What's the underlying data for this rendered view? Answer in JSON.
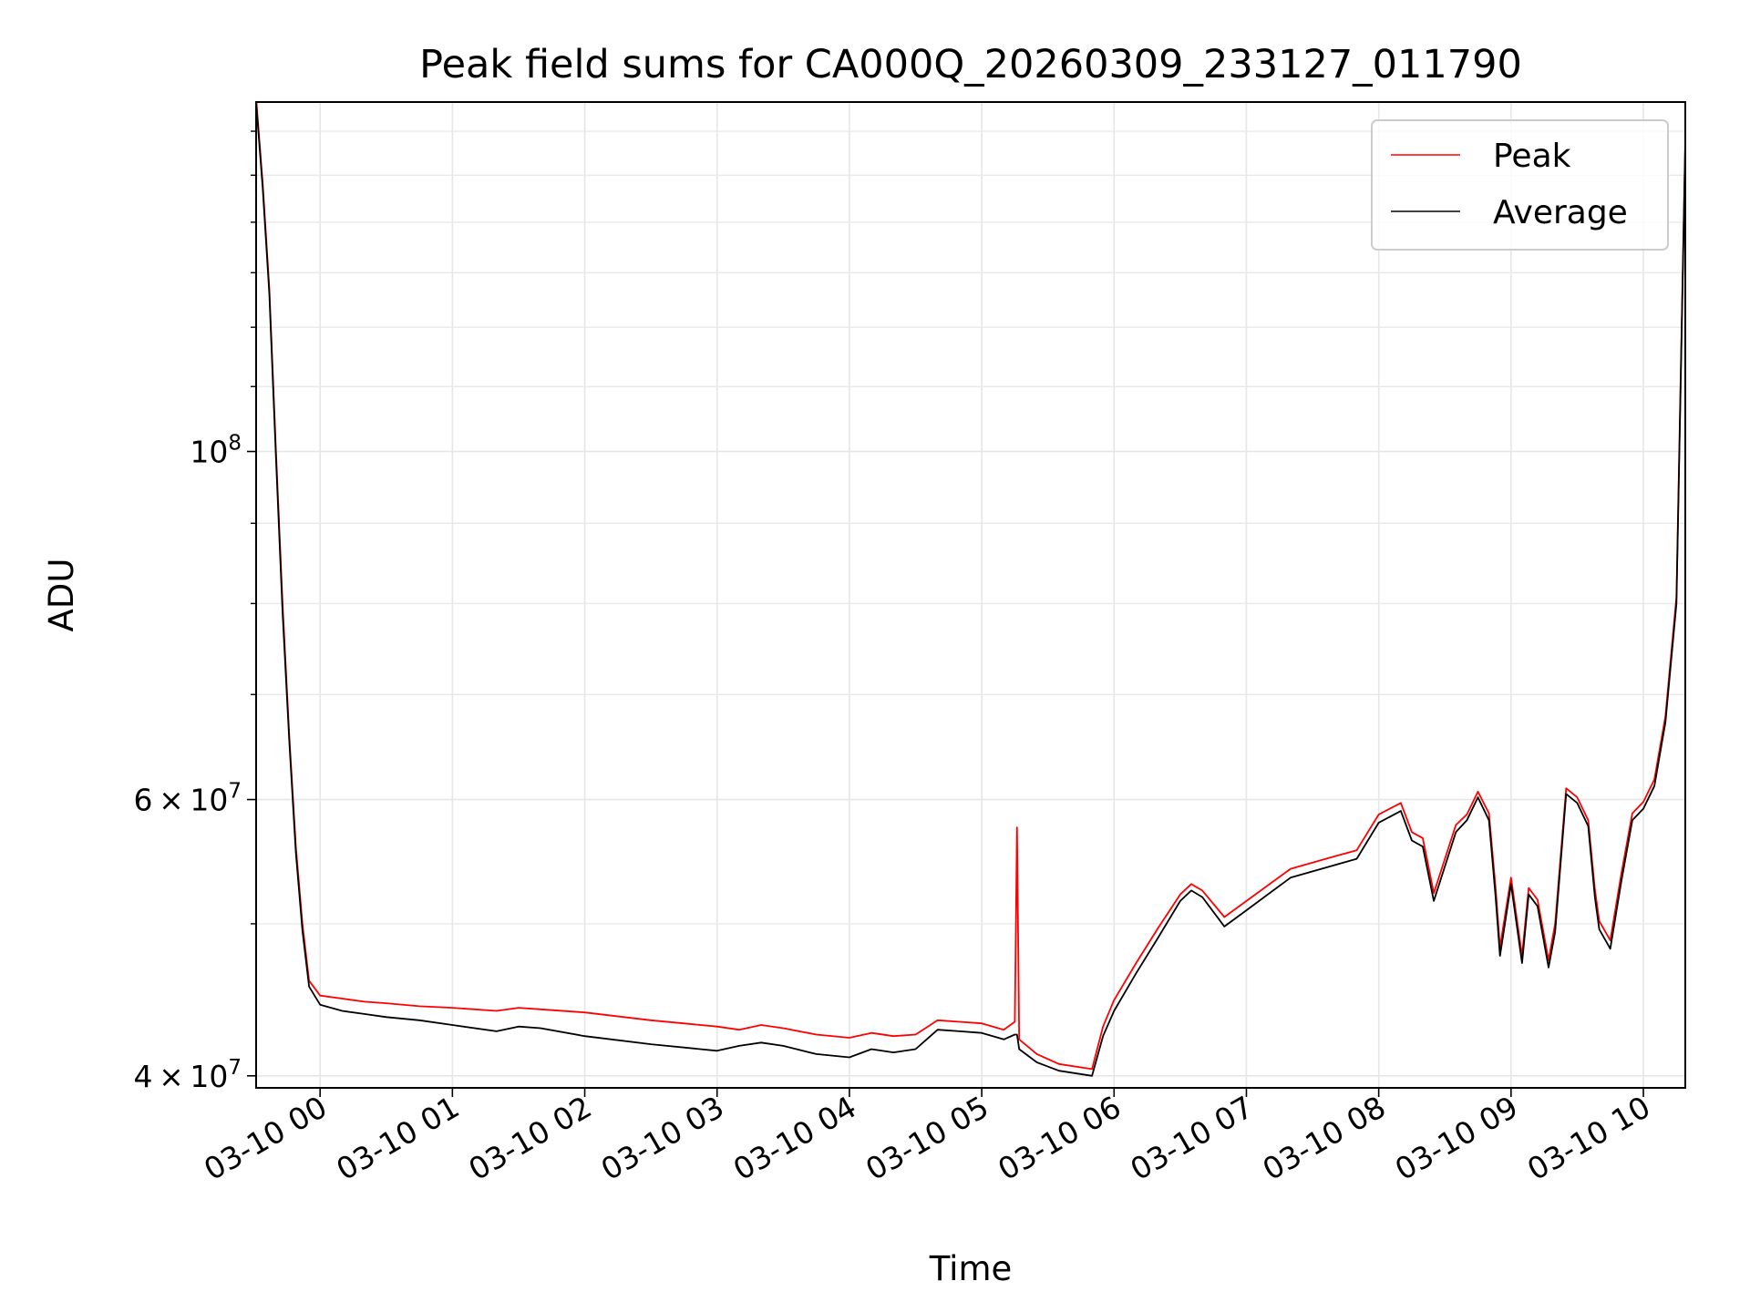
{
  "chart_data": {
    "type": "line",
    "title": "Peak field sums for CA000Q_20260309_233127_011790",
    "xlabel": "Time",
    "ylabel": "ADU",
    "yscale": "log",
    "ylim": [
      39300000,
      167000000
    ],
    "xlim": [
      "2026-03-09 23:31",
      "2026-03-10 10:19"
    ],
    "grid": true,
    "legend_position": "top-right",
    "x_ticks": [
      "03-10 00",
      "03-10 01",
      "03-10 02",
      "03-10 03",
      "03-10 04",
      "03-10 05",
      "03-10 06",
      "03-10 07",
      "03-10 08",
      "03-10 09",
      "03-10 10"
    ],
    "y_major_ticks": [
      {
        "value": 40000000,
        "mantissa": "4",
        "exp": "7"
      },
      {
        "value": 60000000,
        "mantissa": "6",
        "exp": "7"
      },
      {
        "value": 100000000,
        "mantissa": "",
        "exp": "8"
      }
    ],
    "series": [
      {
        "name": "Peak",
        "color": "#ff0000",
        "x": [
          "2026-03-09 23:31",
          "2026-03-09 23:34",
          "2026-03-09 23:37",
          "2026-03-09 23:40",
          "2026-03-09 23:43",
          "2026-03-09 23:46",
          "2026-03-09 23:49",
          "2026-03-09 23:52",
          "2026-03-09 23:55",
          "2026-03-10 00:00",
          "2026-03-10 00:10",
          "2026-03-10 00:20",
          "2026-03-10 00:30",
          "2026-03-10 00:45",
          "2026-03-10 01:00",
          "2026-03-10 01:20",
          "2026-03-10 01:30",
          "2026-03-10 01:40",
          "2026-03-10 02:00",
          "2026-03-10 02:30",
          "2026-03-10 03:00",
          "2026-03-10 03:10",
          "2026-03-10 03:20",
          "2026-03-10 03:30",
          "2026-03-10 03:45",
          "2026-03-10 04:00",
          "2026-03-10 04:10",
          "2026-03-10 04:20",
          "2026-03-10 04:30",
          "2026-03-10 04:40",
          "2026-03-10 04:50",
          "2026-03-10 05:00",
          "2026-03-10 05:10",
          "2026-03-10 05:15",
          "2026-03-10 05:16",
          "2026-03-10 05:17",
          "2026-03-10 05:25",
          "2026-03-10 05:35",
          "2026-03-10 05:50",
          "2026-03-10 05:55",
          "2026-03-10 06:00",
          "2026-03-10 06:10",
          "2026-03-10 06:20",
          "2026-03-10 06:30",
          "2026-03-10 06:35",
          "2026-03-10 06:40",
          "2026-03-10 06:50",
          "2026-03-10 07:00",
          "2026-03-10 07:20",
          "2026-03-10 07:30",
          "2026-03-10 07:40",
          "2026-03-10 07:50",
          "2026-03-10 08:00",
          "2026-03-10 08:10",
          "2026-03-10 08:15",
          "2026-03-10 08:20",
          "2026-03-10 08:25",
          "2026-03-10 08:35",
          "2026-03-10 08:40",
          "2026-03-10 08:45",
          "2026-03-10 08:50",
          "2026-03-10 08:53",
          "2026-03-10 08:55",
          "2026-03-10 09:00",
          "2026-03-10 09:05",
          "2026-03-10 09:08",
          "2026-03-10 09:12",
          "2026-03-10 09:17",
          "2026-03-10 09:20",
          "2026-03-10 09:25",
          "2026-03-10 09:30",
          "2026-03-10 09:35",
          "2026-03-10 09:38",
          "2026-03-10 09:40",
          "2026-03-10 09:45",
          "2026-03-10 09:50",
          "2026-03-10 09:55",
          "2026-03-10 10:00",
          "2026-03-10 10:05",
          "2026-03-10 10:10",
          "2026-03-10 10:15",
          "2026-03-10 10:19"
        ],
        "y": [
          168000000,
          148000000,
          127000000,
          100000000,
          80000000,
          66000000,
          56000000,
          50000000,
          46000000,
          45000000,
          44800000,
          44600000,
          44500000,
          44300000,
          44200000,
          44000000,
          44200000,
          44100000,
          43900000,
          43400000,
          43000000,
          42800000,
          43100000,
          42900000,
          42500000,
          42300000,
          42600000,
          42400000,
          42500000,
          43400000,
          43300000,
          43200000,
          42800000,
          43300000,
          57600000,
          42200000,
          41300000,
          40700000,
          40400000,
          43000000,
          44700000,
          47200000,
          49700000,
          52200000,
          53000000,
          52500000,
          50500000,
          51700000,
          54200000,
          54700000,
          55200000,
          55700000,
          58700000,
          59700000,
          57200000,
          56700000,
          52300000,
          57800000,
          58700000,
          60700000,
          58800000,
          52700000,
          48300000,
          53500000,
          47700000,
          52700000,
          51800000,
          47400000,
          50000000,
          61000000,
          60200000,
          58200000,
          52600000,
          50200000,
          48800000,
          53800000,
          58800000,
          59800000,
          61800000,
          67800000,
          80800000,
          158000000
        ]
      },
      {
        "name": "Average",
        "color": "#000000",
        "x": [
          "2026-03-09 23:31",
          "2026-03-09 23:34",
          "2026-03-09 23:37",
          "2026-03-09 23:40",
          "2026-03-09 23:43",
          "2026-03-09 23:46",
          "2026-03-09 23:49",
          "2026-03-09 23:52",
          "2026-03-09 23:55",
          "2026-03-10 00:00",
          "2026-03-10 00:10",
          "2026-03-10 00:20",
          "2026-03-10 00:30",
          "2026-03-10 00:45",
          "2026-03-10 01:00",
          "2026-03-10 01:20",
          "2026-03-10 01:30",
          "2026-03-10 01:40",
          "2026-03-10 02:00",
          "2026-03-10 02:30",
          "2026-03-10 03:00",
          "2026-03-10 03:10",
          "2026-03-10 03:20",
          "2026-03-10 03:30",
          "2026-03-10 03:45",
          "2026-03-10 04:00",
          "2026-03-10 04:10",
          "2026-03-10 04:20",
          "2026-03-10 04:30",
          "2026-03-10 04:40",
          "2026-03-10 04:50",
          "2026-03-10 05:00",
          "2026-03-10 05:10",
          "2026-03-10 05:15",
          "2026-03-10 05:16",
          "2026-03-10 05:17",
          "2026-03-10 05:25",
          "2026-03-10 05:35",
          "2026-03-10 05:50",
          "2026-03-10 05:55",
          "2026-03-10 06:00",
          "2026-03-10 06:10",
          "2026-03-10 06:20",
          "2026-03-10 06:30",
          "2026-03-10 06:35",
          "2026-03-10 06:40",
          "2026-03-10 06:50",
          "2026-03-10 07:00",
          "2026-03-10 07:20",
          "2026-03-10 07:30",
          "2026-03-10 07:40",
          "2026-03-10 07:50",
          "2026-03-10 08:00",
          "2026-03-10 08:10",
          "2026-03-10 08:15",
          "2026-03-10 08:20",
          "2026-03-10 08:25",
          "2026-03-10 08:35",
          "2026-03-10 08:40",
          "2026-03-10 08:45",
          "2026-03-10 08:50",
          "2026-03-10 08:53",
          "2026-03-10 08:55",
          "2026-03-10 09:00",
          "2026-03-10 09:05",
          "2026-03-10 09:08",
          "2026-03-10 09:12",
          "2026-03-10 09:17",
          "2026-03-10 09:20",
          "2026-03-10 09:25",
          "2026-03-10 09:30",
          "2026-03-10 09:35",
          "2026-03-10 09:38",
          "2026-03-10 09:40",
          "2026-03-10 09:45",
          "2026-03-10 09:50",
          "2026-03-10 09:55",
          "2026-03-10 10:00",
          "2026-03-10 10:05",
          "2026-03-10 10:10",
          "2026-03-10 10:15",
          "2026-03-10 10:19"
        ],
        "y": [
          167000000,
          147000000,
          126000000,
          99000000,
          79000000,
          65500000,
          55500000,
          49500000,
          45600000,
          44400000,
          44000000,
          43800000,
          43600000,
          43400000,
          43100000,
          42700000,
          43000000,
          42900000,
          42400000,
          41900000,
          41500000,
          41800000,
          42000000,
          41800000,
          41300000,
          41100000,
          41600000,
          41400000,
          41600000,
          42800000,
          42700000,
          42600000,
          42200000,
          42500000,
          42500000,
          41600000,
          40800000,
          40300000,
          40000000,
          42400000,
          44000000,
          46500000,
          49000000,
          51700000,
          52500000,
          52000000,
          49800000,
          51000000,
          53500000,
          54000000,
          54500000,
          55000000,
          58000000,
          59000000,
          56500000,
          56000000,
          51700000,
          57200000,
          58200000,
          60200000,
          58200000,
          52000000,
          47700000,
          53000000,
          47200000,
          52200000,
          51300000,
          46900000,
          49400000,
          60500000,
          59700000,
          57700000,
          52000000,
          49600000,
          48200000,
          53200000,
          58200000,
          59200000,
          61200000,
          67200000,
          80000000,
          157000000
        ]
      }
    ]
  }
}
